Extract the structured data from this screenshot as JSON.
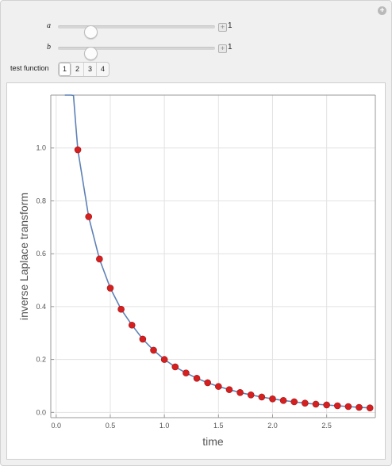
{
  "controls": {
    "a": {
      "label": "a",
      "value": "1",
      "position": 0.18
    },
    "b": {
      "label": "b",
      "value": "1",
      "position": 0.18
    }
  },
  "test_function": {
    "label": "test function",
    "options": [
      "1",
      "2",
      "3",
      "4"
    ],
    "selected": "1"
  },
  "chart_data": {
    "type": "line",
    "xlabel": "time",
    "ylabel": "inverse Laplace transform",
    "xlim": [
      -0.05,
      2.95
    ],
    "ylim": [
      -0.02,
      1.2
    ],
    "xticks": [
      "0.0",
      "0.5",
      "1.0",
      "1.5",
      "2.0",
      "2.5"
    ],
    "xtick_values": [
      0,
      0.5,
      1.0,
      1.5,
      2.0,
      2.5
    ],
    "yticks": [
      "0.0",
      "0.2",
      "0.4",
      "0.6",
      "0.8",
      "1.0"
    ],
    "ytick_values": [
      0,
      0.2,
      0.4,
      0.6,
      0.8,
      1.0
    ],
    "grid": true,
    "line_color": "#5e81b5",
    "point_color": "#d42020",
    "series": [
      {
        "type": "points",
        "x": [
          0.2,
          0.3,
          0.4,
          0.5,
          0.6,
          0.7,
          0.8,
          0.9,
          1.0,
          1.1,
          1.2,
          1.3,
          1.4,
          1.5,
          1.6,
          1.7,
          1.8,
          1.9,
          2.0,
          2.1,
          2.2,
          2.3,
          2.4,
          2.5,
          2.6,
          2.7,
          2.8,
          2.9
        ],
        "y": [
          0.993,
          0.74,
          0.58,
          0.47,
          0.39,
          0.33,
          0.277,
          0.235,
          0.2,
          0.172,
          0.149,
          0.129,
          0.112,
          0.098,
          0.086,
          0.075,
          0.066,
          0.058,
          0.051,
          0.045,
          0.04,
          0.035,
          0.031,
          0.028,
          0.025,
          0.022,
          0.019,
          0.017
        ]
      }
    ]
  }
}
